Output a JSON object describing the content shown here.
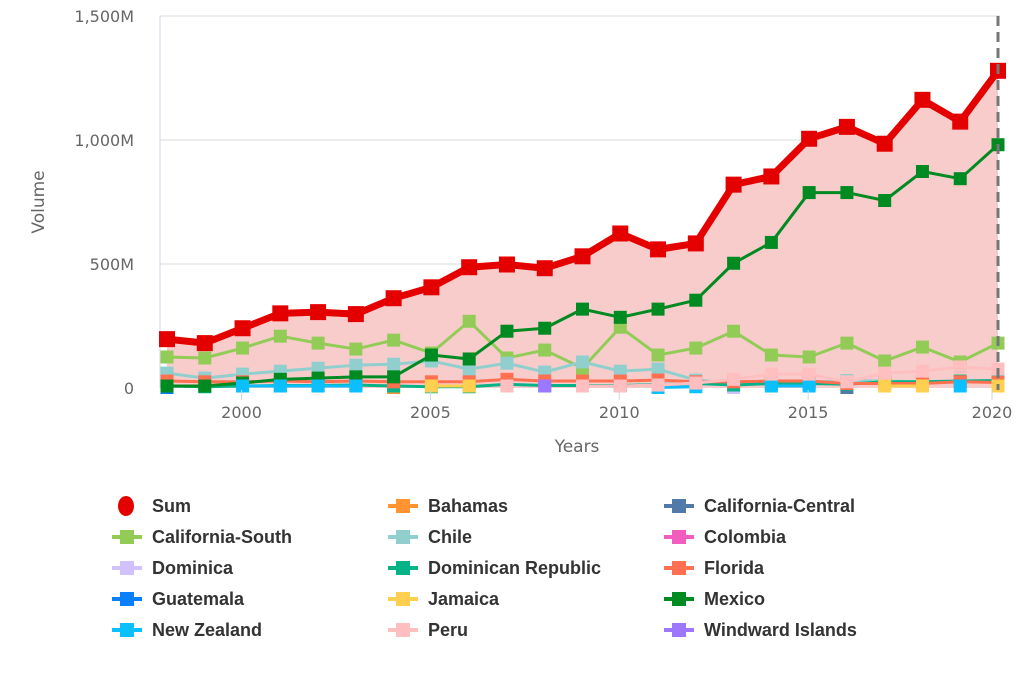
{
  "chart_data": {
    "type": "line",
    "xlabel": "Years",
    "ylabel": "Volume",
    "ylim": [
      0,
      1500
    ],
    "yticks": [
      "0",
      "500M",
      "1,000M",
      "1,500M"
    ],
    "ytick_values": [
      0,
      500,
      1000,
      1500
    ],
    "xticks": [
      "2000",
      "2005",
      "2010",
      "2015",
      "2020"
    ],
    "xtick_values": [
      2000,
      2005,
      2010,
      2015,
      2020
    ],
    "grid": "horizontal",
    "legend_position": "bottom",
    "x": [
      1998,
      1999,
      2000,
      2001,
      2002,
      2003,
      2004,
      2005,
      2006,
      2007,
      2008,
      2009,
      2010,
      2011,
      2012,
      2013,
      2014,
      2015,
      2016,
      2017,
      2018,
      2019,
      2020
    ],
    "series": [
      {
        "name": "Sum",
        "color": "#e50000",
        "marker": "circle",
        "area": true,
        "values": [
          197,
          181,
          241,
          301,
          306,
          298,
          362,
          406,
          487,
          498,
          483,
          531,
          623,
          559,
          583,
          820,
          853,
          1005,
          1053,
          985,
          1162,
          1074,
          1279
        ]
      },
      {
        "name": "Bahamas",
        "color": "#ff9430",
        "values": [
          null,
          null,
          null,
          null,
          null,
          null,
          2,
          null,
          null,
          null,
          null,
          null,
          null,
          null,
          null,
          null,
          null,
          null,
          null,
          null,
          null,
          null,
          null
        ]
      },
      {
        "name": "California-Central",
        "color": "#507aa9",
        "values": [
          null,
          null,
          null,
          null,
          null,
          null,
          null,
          null,
          null,
          null,
          null,
          null,
          null,
          null,
          null,
          null,
          null,
          null,
          2,
          null,
          null,
          null,
          null
        ]
      },
      {
        "name": "California-South",
        "color": "#92cc57",
        "values": [
          125,
          121,
          161,
          209,
          181,
          157,
          193,
          141,
          269,
          121,
          153,
          80,
          245,
          133,
          161,
          229,
          133,
          125,
          181,
          109,
          165,
          105,
          181
        ]
      },
      {
        "name": "Chile",
        "color": "#91cfcf",
        "values": [
          60,
          40,
          56,
          68,
          80,
          92,
          96,
          109,
          76,
          100,
          64,
          105,
          68,
          76,
          32,
          20,
          20,
          22,
          30,
          28,
          25,
          25,
          25
        ]
      },
      {
        "name": "Colombia",
        "color": "#f25ebf",
        "values": [
          null,
          null,
          null,
          null,
          null,
          null,
          null,
          null,
          null,
          null,
          null,
          null,
          null,
          null,
          null,
          null,
          null,
          null,
          null,
          null,
          null,
          null,
          null
        ]
      },
      {
        "name": "Dominica",
        "color": "#d1c2ff",
        "values": [
          null,
          null,
          null,
          null,
          null,
          null,
          null,
          null,
          null,
          null,
          null,
          null,
          null,
          null,
          null,
          2,
          null,
          null,
          null,
          null,
          null,
          null,
          null
        ]
      },
      {
        "name": "Dominican Republic",
        "color": "#06b389",
        "values": [
          8,
          5,
          8,
          10,
          10,
          12,
          8,
          5,
          5,
          15,
          10,
          10,
          10,
          14,
          18,
          12,
          18,
          18,
          15,
          25,
          25,
          28,
          30
        ]
      },
      {
        "name": "Florida",
        "color": "#ff7050",
        "values": [
          28,
          25,
          25,
          28,
          25,
          28,
          25,
          25,
          25,
          35,
          28,
          28,
          28,
          32,
          25,
          25,
          28,
          28,
          18,
          18,
          18,
          25,
          22
        ]
      },
      {
        "name": "Guatemala",
        "color": "#0a80ff",
        "values": [
          2,
          null,
          null,
          null,
          null,
          null,
          null,
          null,
          null,
          null,
          null,
          null,
          null,
          null,
          null,
          null,
          null,
          null,
          null,
          null,
          null,
          null,
          null
        ]
      },
      {
        "name": "Jamaica",
        "color": "#ffd050",
        "values": [
          null,
          null,
          null,
          null,
          null,
          null,
          null,
          8,
          8,
          null,
          null,
          null,
          null,
          null,
          null,
          null,
          null,
          null,
          null,
          8,
          8,
          null,
          8
        ]
      },
      {
        "name": "Mexico",
        "color": "#008a22",
        "values": [
          8,
          8,
          20,
          35,
          40,
          45,
          45,
          133,
          117,
          229,
          241,
          318,
          285,
          318,
          354,
          503,
          587,
          788,
          788,
          756,
          873,
          844,
          981
        ]
      },
      {
        "name": "New Zealand",
        "color": "#0cc0ff",
        "values": [
          null,
          null,
          8,
          8,
          8,
          8,
          null,
          null,
          null,
          null,
          null,
          null,
          null,
          2,
          5,
          null,
          8,
          8,
          null,
          null,
          null,
          8,
          null
        ]
      },
      {
        "name": "Peru",
        "color": "#ffbfc0",
        "values": [
          null,
          null,
          null,
          null,
          null,
          null,
          null,
          null,
          null,
          8,
          null,
          8,
          8,
          12,
          20,
          35,
          56,
          56,
          25,
          60,
          68,
          85,
          76
        ]
      },
      {
        "name": "Windward Islands",
        "color": "#9d78ff",
        "values": [
          null,
          null,
          null,
          null,
          null,
          null,
          null,
          null,
          null,
          null,
          8,
          null,
          null,
          null,
          null,
          null,
          null,
          null,
          null,
          null,
          null,
          null,
          null
        ]
      }
    ]
  }
}
